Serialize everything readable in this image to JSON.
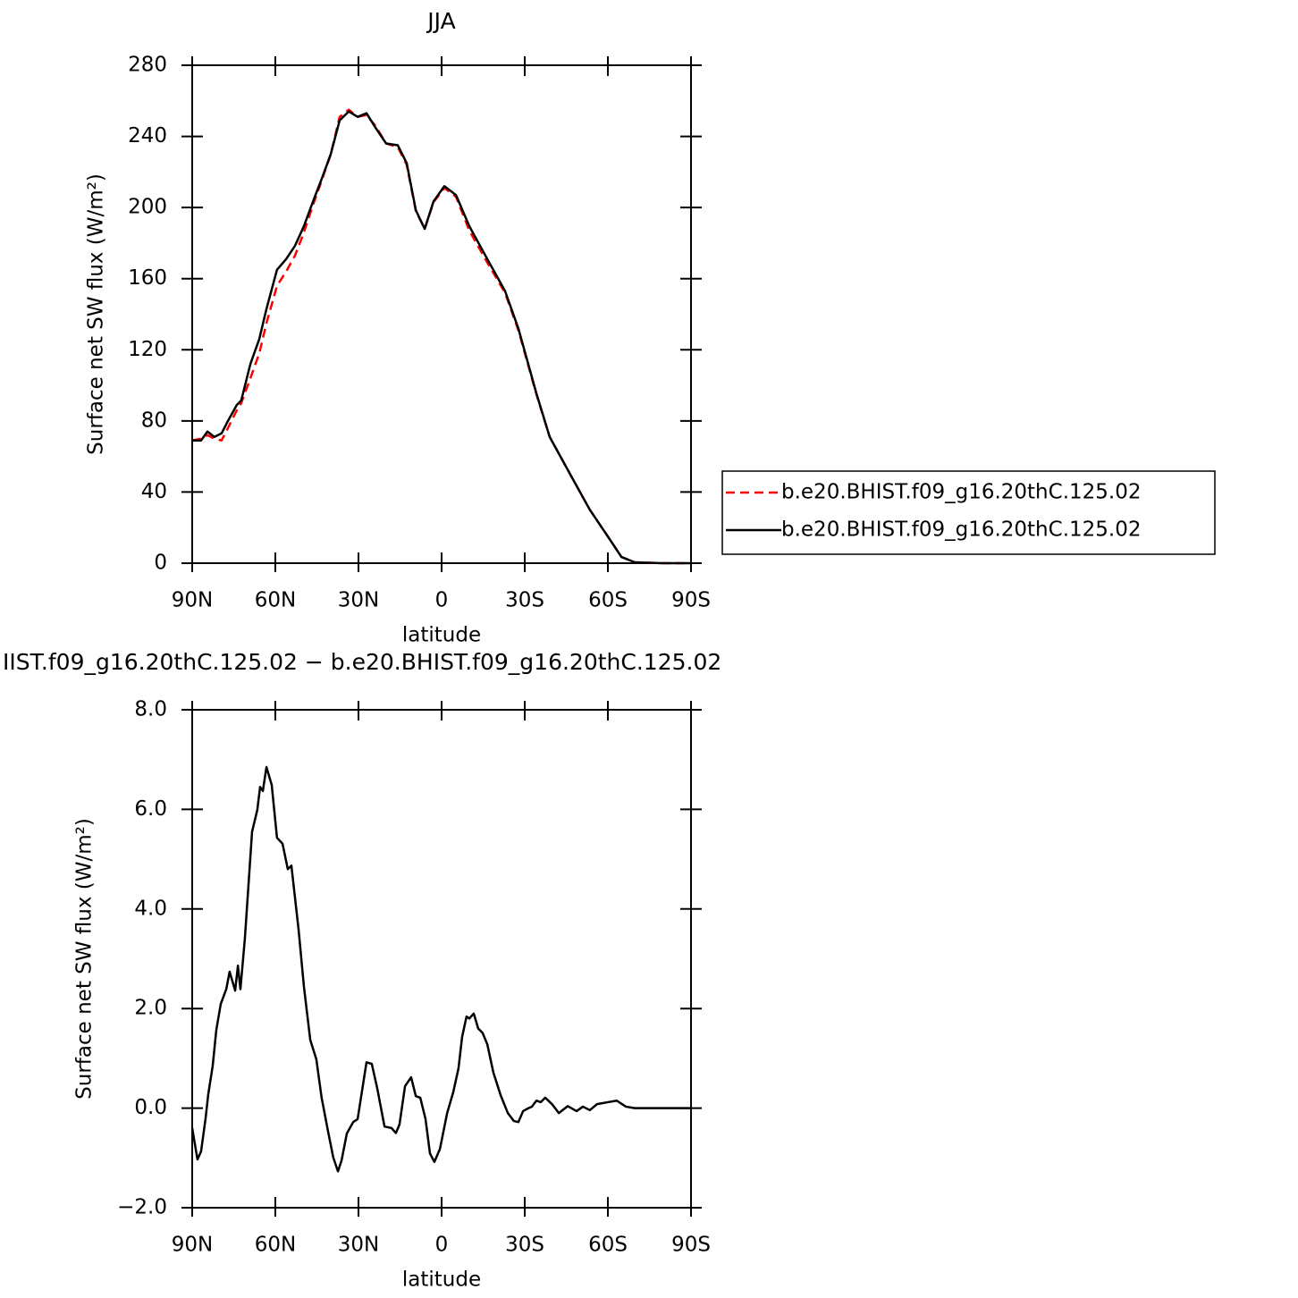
{
  "chart_data": [
    {
      "type": "line",
      "title": "JJA",
      "xlabel": "latitude",
      "ylabel": "Surface net SW flux (W/m²)",
      "x": [
        90,
        86.8,
        84.5,
        82,
        79.4,
        77.1,
        73.9,
        72.3,
        69,
        65.8,
        63.2,
        59.4,
        56.1,
        52.9,
        49.7,
        46.5,
        43.3,
        40,
        36.8,
        33.5,
        30.3,
        27.1,
        23.9,
        20,
        15.8,
        12.6,
        9.3,
        6.1,
        2.9,
        -1,
        -5.2,
        -10,
        -16.5,
        -22.9,
        -27.7,
        -34.2,
        -39,
        -47.1,
        -53.5,
        -60,
        -64.9,
        -69.7,
        -79.4,
        -90
      ],
      "series": [
        {
          "name": "b.e20.BHIST.f09_g16.20thC.125.02",
          "color": "#ff0000",
          "dashed": true,
          "values": [
            69,
            70,
            72,
            70,
            69,
            76,
            86,
            90,
            104,
            118,
            135,
            156,
            164,
            173,
            186,
            201,
            215,
            230,
            251,
            255,
            251,
            252,
            246,
            236,
            234,
            224,
            198,
            188,
            203,
            211,
            206,
            187,
            169,
            152,
            131,
            95,
            71,
            48,
            30,
            15,
            3.5,
            0.5,
            0,
            0
          ]
        },
        {
          "name": "b.e20.BHIST.f09_g16.20thC.125.02",
          "color": "#000000",
          "dashed": false,
          "values": [
            69,
            69,
            74,
            71,
            73,
            80,
            89,
            91.5,
            112,
            126,
            143,
            165,
            171,
            178.5,
            189.5,
            203,
            216,
            230,
            249,
            254,
            251,
            253,
            245,
            236,
            235,
            225,
            198.5,
            188,
            203.5,
            212,
            207,
            189.5,
            171,
            153,
            132,
            95.5,
            71,
            48,
            30,
            15,
            3.5,
            0.5,
            0,
            0
          ]
        }
      ],
      "xlim": [
        90,
        -90
      ],
      "xticks": [
        {
          "value": 90,
          "label": "90N"
        },
        {
          "value": 60,
          "label": "60N"
        },
        {
          "value": 30,
          "label": "30N"
        },
        0,
        {
          "value": -30,
          "label": "30S"
        },
        {
          "value": -60,
          "label": "60S"
        },
        {
          "value": -90,
          "label": "90S"
        }
      ],
      "ylim": [
        0,
        280
      ],
      "yticks": [
        0,
        40,
        80,
        120,
        160,
        200,
        240,
        280
      ],
      "legend": "right"
    },
    {
      "type": "line",
      "title": "IIST.f09_g16.20thC.125.02 − b.e20.BHIST.f09_g16.20thC.125.02",
      "xlabel": "latitude",
      "ylabel": "Surface net SW flux (W/m²)",
      "x": [
        90,
        88.1,
        86.8,
        85.2,
        84.2,
        82.6,
        81.3,
        79.7,
        77.7,
        76.5,
        74.5,
        73.5,
        72.6,
        71,
        69.7,
        68.4,
        66.5,
        65.5,
        64.5,
        63.2,
        61.3,
        59.4,
        57.4,
        55.5,
        54.2,
        51.6,
        49.7,
        47.4,
        45.2,
        43.3,
        41,
        39.1,
        37.4,
        36.1,
        34.2,
        31.9,
        30.3,
        28.7,
        27.1,
        25.2,
        23.2,
        20.6,
        18.1,
        16.5,
        15.2,
        13.2,
        11,
        9.3,
        7.7,
        5.8,
        4.2,
        2.6,
        0.6,
        -2,
        -4.2,
        -6.1,
        -7.4,
        -9,
        -10,
        -11.6,
        -13.2,
        -14.8,
        -16.5,
        -18.7,
        -21.3,
        -23.9,
        -26.1,
        -27.7,
        -29.4,
        -31,
        -32.6,
        -34.2,
        -35.8,
        -37.4,
        -40,
        -42.3,
        -45.5,
        -48.7,
        -51,
        -53.5,
        -56.1,
        -60,
        -63.2,
        -66.5,
        -69.7,
        -90
      ],
      "series": [
        {
          "color": "#000000",
          "dashed": false,
          "values": [
            -0.4,
            -1.03,
            -0.87,
            -0.22,
            0.28,
            0.85,
            1.57,
            2.09,
            2.39,
            2.74,
            2.36,
            2.86,
            2.39,
            3.4,
            4.47,
            5.55,
            5.99,
            6.45,
            6.37,
            6.85,
            6.49,
            5.43,
            5.31,
            4.8,
            4.87,
            3.58,
            2.45,
            1.37,
            0.98,
            0.21,
            -0.46,
            -0.99,
            -1.27,
            -1.05,
            -0.51,
            -0.28,
            -0.22,
            0.35,
            0.92,
            0.89,
            0.39,
            -0.37,
            -0.4,
            -0.5,
            -0.33,
            0.44,
            0.62,
            0.24,
            0.21,
            -0.22,
            -0.91,
            -1.08,
            -0.82,
            -0.1,
            0.32,
            0.8,
            1.43,
            1.84,
            1.8,
            1.9,
            1.6,
            1.51,
            1.28,
            0.71,
            0.26,
            -0.1,
            -0.26,
            -0.28,
            -0.06,
            -0.01,
            0.03,
            0.15,
            0.12,
            0.21,
            0.07,
            -0.1,
            0.04,
            -0.06,
            0.03,
            -0.04,
            0.08,
            0.12,
            0.15,
            0.03,
            0,
            0
          ]
        }
      ],
      "xlim": [
        90,
        -90
      ],
      "xticks": [
        {
          "value": 90,
          "label": "90N"
        },
        {
          "value": 60,
          "label": "60N"
        },
        {
          "value": 30,
          "label": "30N"
        },
        0,
        {
          "value": -30,
          "label": "30S"
        },
        {
          "value": -60,
          "label": "60S"
        },
        {
          "value": -90,
          "label": "90S"
        }
      ],
      "ylim": [
        -2,
        8
      ],
      "yticks": [
        {
          "value": -2,
          "label": "−2.0"
        },
        {
          "value": 0,
          "label": "0.0"
        },
        {
          "value": 2,
          "label": "2.0"
        },
        {
          "value": 4,
          "label": "4.0"
        },
        {
          "value": 6,
          "label": "6.0"
        },
        {
          "value": 8,
          "label": "8.0"
        }
      ]
    }
  ]
}
